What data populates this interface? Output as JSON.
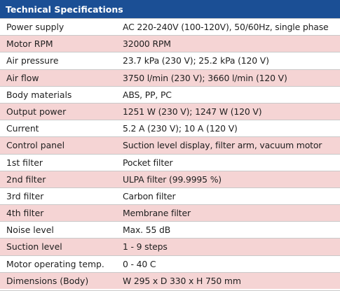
{
  "table": {
    "title": "Technical Specifications",
    "rows": [
      {
        "label": "Power supply",
        "value": "AC 220-240V (100-120V), 50/60Hz, single phase"
      },
      {
        "label": "Motor RPM",
        "value": "32000 RPM"
      },
      {
        "label": "Air pressure",
        "value": "23.7 kPa (230 V); 25.2 kPa (120 V)"
      },
      {
        "label": "Air flow",
        "value": "3750 l/min (230 V); 3660 l/min (120 V)"
      },
      {
        "label": "Body materials",
        "value": "ABS, PP, PC"
      },
      {
        "label": "Output power",
        "value": "1251 W (230 V); 1247 W (120 V)"
      },
      {
        "label": "Current",
        "value": "5.2 A (230 V); 10 A (120 V)"
      },
      {
        "label": "Control panel",
        "value": "Suction level display, filter arm, vacuum motor"
      },
      {
        "label": "1st filter",
        "value": "Pocket filter"
      },
      {
        "label": "2nd filter",
        "value": "ULPA filter (99.9995 %)"
      },
      {
        "label": "3rd filter",
        "value": "Carbon filter"
      },
      {
        "label": "4th filter",
        "value": "Membrane filter"
      },
      {
        "label": "Noise level",
        "value": "Max. 55 dB"
      },
      {
        "label": "Suction level",
        "value": "1 - 9 steps"
      },
      {
        "label": "Motor operating temp.",
        "value": "0 - 40 C"
      },
      {
        "label": "Dimensions (Body)",
        "value": "W 295 x D 330 x H 750 mm"
      }
    ]
  }
}
